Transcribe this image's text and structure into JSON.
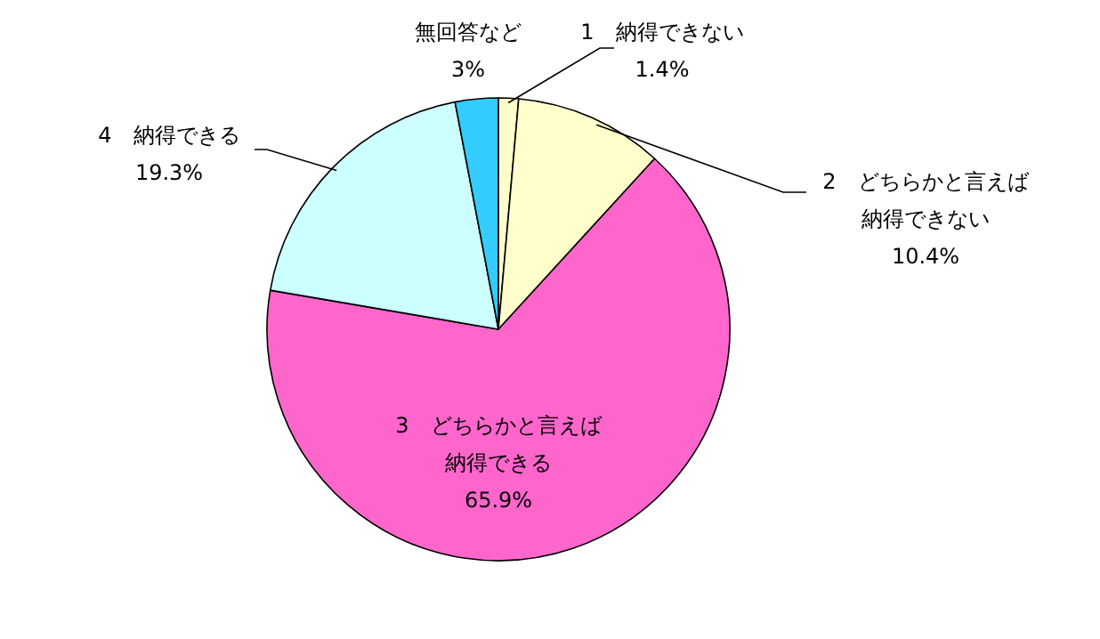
{
  "chart_data": {
    "type": "pie",
    "categories": [
      "1　納得できない",
      "2　どちらかと言えば納得できない",
      "3　どちらかと言えば納得できる",
      "4　納得できる",
      "無回答など"
    ],
    "values": [
      1.4,
      10.4,
      65.9,
      19.3,
      3
    ],
    "value_labels": [
      "1.4%",
      "10.4%",
      "65.9%",
      "19.3%",
      "3%"
    ],
    "colors": [
      "#ffffcc",
      "#ffffcc",
      "#ff66cc",
      "#ccffff",
      "#33ccff"
    ]
  }
}
